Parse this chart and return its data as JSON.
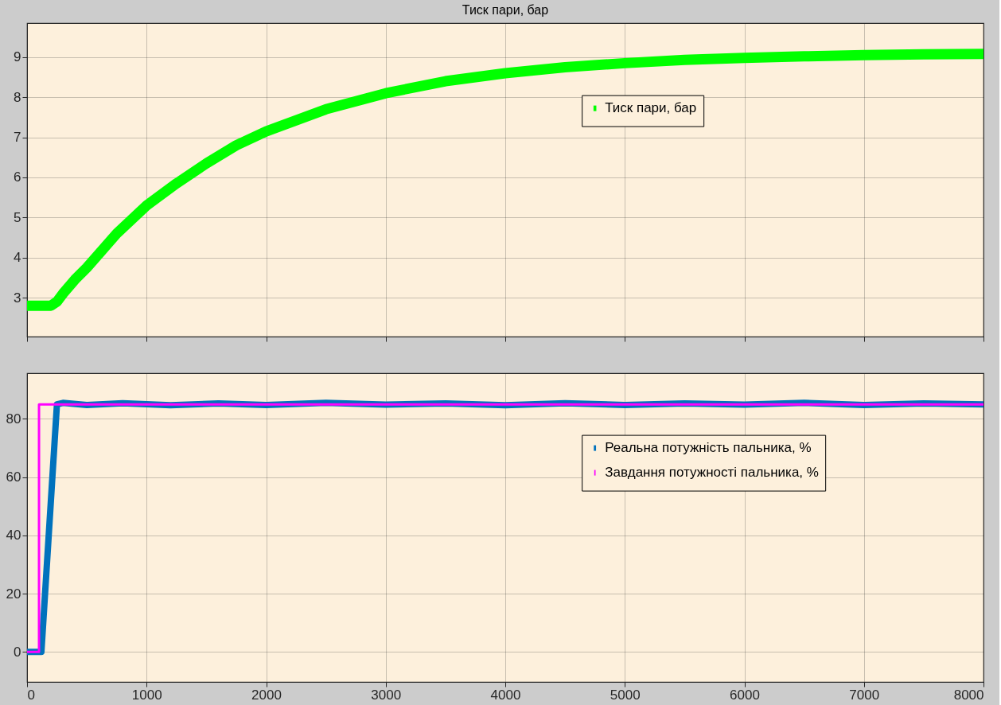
{
  "chart_data": [
    {
      "type": "line",
      "title": "Тиск пари, бар",
      "xlim": [
        0,
        8000
      ],
      "xticks": [
        0,
        1000,
        2000,
        3000,
        4000,
        5000,
        6000,
        7000,
        8000
      ],
      "ylim": [
        2.03,
        9.85
      ],
      "yticks": [
        3,
        4,
        5,
        6,
        7,
        8,
        9
      ],
      "tick_labels": "y",
      "grid": true,
      "legend": "top right",
      "x": [
        0,
        200,
        250,
        300,
        400,
        500,
        750,
        1000,
        1250,
        1500,
        1750,
        2000,
        2500,
        3000,
        3500,
        4000,
        4500,
        5000,
        5500,
        6000,
        6500,
        7000,
        7500,
        8000
      ],
      "series": [
        {
          "name": "Тиск пари, бар",
          "color": "#00ff00",
          "values": [
            2.8,
            2.8,
            2.9,
            3.1,
            3.45,
            3.75,
            4.6,
            5.3,
            5.85,
            6.35,
            6.8,
            7.15,
            7.7,
            8.1,
            8.4,
            8.6,
            8.75,
            8.85,
            8.93,
            8.98,
            9.02,
            9.05,
            9.07,
            9.08
          ]
        }
      ]
    },
    {
      "type": "line",
      "xlim": [
        0,
        8000
      ],
      "xticks": [
        0,
        1000,
        2000,
        3000,
        4000,
        5000,
        6000,
        7000,
        8000
      ],
      "ylim": [
        -10.3,
        95.7
      ],
      "yticks": [
        0,
        20,
        40,
        60,
        80
      ],
      "grid": true,
      "legend": "right",
      "series": [
        {
          "name": "Реальна потужність пальника, %",
          "color": "#0072bd",
          "x": [
            0,
            120,
            250,
            300,
            500,
            800,
            1200,
            1600,
            2000,
            2500,
            3000,
            3500,
            4000,
            4500,
            5000,
            5500,
            6000,
            6500,
            7000,
            7500,
            8000
          ],
          "values": [
            0,
            0,
            85,
            85.5,
            84.8,
            85.4,
            84.7,
            85.3,
            84.8,
            85.5,
            84.9,
            85.3,
            84.7,
            85.4,
            84.8,
            85.3,
            84.9,
            85.5,
            84.8,
            85.3,
            85
          ]
        },
        {
          "name": "Завдання потужності пальника, %",
          "color": "#ff00ff",
          "x": [
            0,
            100,
            100,
            8000
          ],
          "values": [
            0,
            0,
            85,
            85
          ]
        }
      ]
    }
  ]
}
